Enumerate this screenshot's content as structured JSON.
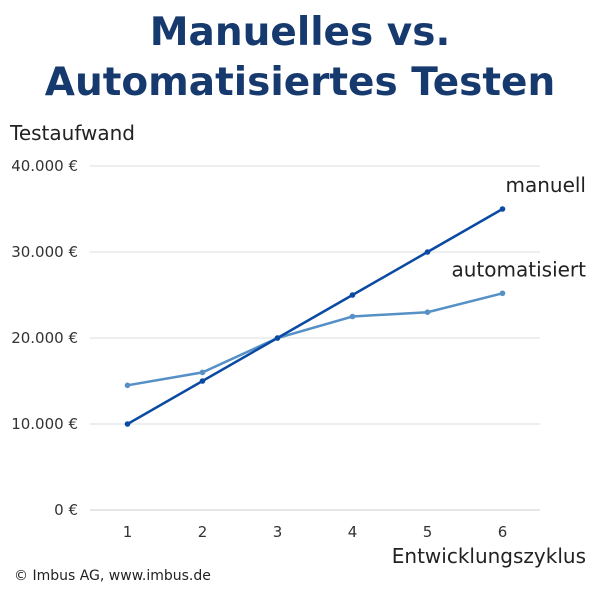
{
  "title_line1": "Manuelles vs.",
  "title_line2": "Automatisiertes Testen",
  "copyright": "© Imbus AG, www.imbus.de",
  "colors": {
    "title": "#173a6e",
    "manuell": "#0b4aa2",
    "automatisiert": "#5590c6",
    "grid": "#dddddd"
  },
  "chart_data": {
    "type": "line",
    "ylabel": "Testaufwand",
    "xlabel": "Entwicklungszyklus",
    "x": [
      1,
      2,
      3,
      4,
      5,
      6
    ],
    "ylim": [
      0,
      40000
    ],
    "yticks": [
      0,
      10000,
      20000,
      30000,
      40000
    ],
    "ytick_labels": [
      "0 €",
      "10.000 €",
      "20.000 €",
      "30.000 €",
      "40.000 €"
    ],
    "xtick_labels": [
      "1",
      "2",
      "3",
      "4",
      "5",
      "6"
    ],
    "grid": true,
    "series": [
      {
        "name": "manuell",
        "values": [
          10000,
          15000,
          20000,
          25000,
          30000,
          35000
        ]
      },
      {
        "name": "automatisiert",
        "values": [
          14500,
          16000,
          20000,
          22500,
          23000,
          25200
        ]
      }
    ]
  }
}
